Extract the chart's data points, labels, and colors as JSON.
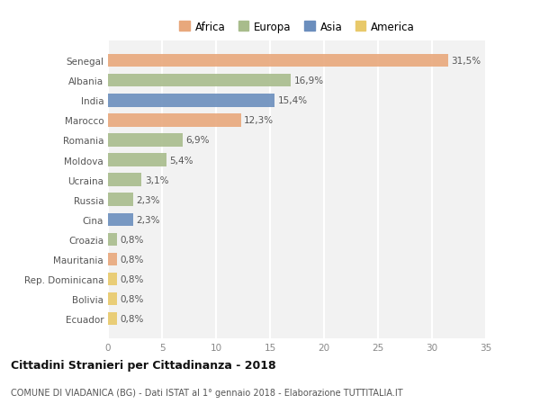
{
  "countries": [
    "Senegal",
    "Albania",
    "India",
    "Marocco",
    "Romania",
    "Moldova",
    "Ucraina",
    "Russia",
    "Cina",
    "Croazia",
    "Mauritania",
    "Rep. Dominicana",
    "Bolivia",
    "Ecuador"
  ],
  "values": [
    31.5,
    16.9,
    15.4,
    12.3,
    6.9,
    5.4,
    3.1,
    2.3,
    2.3,
    0.8,
    0.8,
    0.8,
    0.8,
    0.8
  ],
  "labels": [
    "31,5%",
    "16,9%",
    "15,4%",
    "12,3%",
    "6,9%",
    "5,4%",
    "3,1%",
    "2,3%",
    "2,3%",
    "0,8%",
    "0,8%",
    "0,8%",
    "0,8%",
    "0,8%"
  ],
  "continents": [
    "Africa",
    "Europa",
    "Asia",
    "Africa",
    "Europa",
    "Europa",
    "Europa",
    "Europa",
    "Asia",
    "Europa",
    "Africa",
    "America",
    "America",
    "America"
  ],
  "colors": {
    "Africa": "#E8A87C",
    "Europa": "#A8BC8C",
    "Asia": "#6B8EBD",
    "America": "#E8C96A"
  },
  "legend_labels": [
    "Africa",
    "Europa",
    "Asia",
    "America"
  ],
  "legend_colors": [
    "#E8A87C",
    "#A8BC8C",
    "#6B8EBD",
    "#E8C96A"
  ],
  "xlim": [
    0,
    35
  ],
  "xticks": [
    0,
    5,
    10,
    15,
    20,
    25,
    30,
    35
  ],
  "title_bold": "Cittadini Stranieri per Cittadinanza - 2018",
  "subtitle": "COMUNE DI VIADANICA (BG) - Dati ISTAT al 1° gennaio 2018 - Elaborazione TUTTITALIA.IT",
  "bg_color": "#FFFFFF",
  "plot_bg_color": "#F2F2F2",
  "grid_color": "#FFFFFF",
  "bar_height": 0.65,
  "label_fontsize": 7.5,
  "tick_fontsize": 7.5,
  "legend_fontsize": 8.5
}
